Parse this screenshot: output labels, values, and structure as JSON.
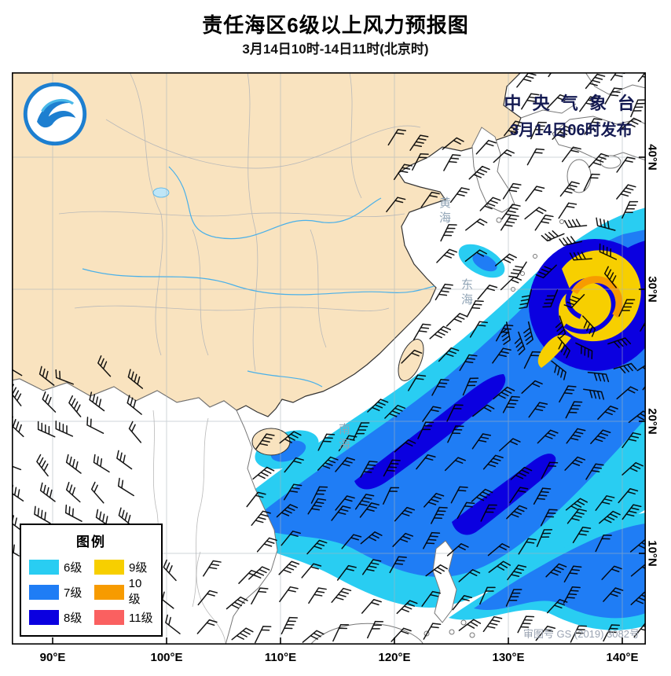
{
  "header": {
    "title": "责任海区6级以上风力预报图",
    "subtitle": "3月14日10时-14日11时(北京时)"
  },
  "issuer": {
    "line1": "中 央 气 象 台",
    "line2": "3月14日06时发布"
  },
  "approval": "审图号 GS (2019) 3082号",
  "seas": {
    "yellow": "黄海",
    "east": "东海",
    "south": "南海"
  },
  "legend": {
    "title": "图例",
    "items": [
      {
        "label": "6级",
        "color": "#29cdf2"
      },
      {
        "label": "7级",
        "color": "#1f7df5"
      },
      {
        "label": "8级",
        "color": "#0b00e0"
      },
      {
        "label": "9级",
        "color": "#f7cf00"
      },
      {
        "label": "10级",
        "color": "#f79b00"
      },
      {
        "label": "11级",
        "color": "#fa6060"
      }
    ]
  },
  "axes": {
    "x": [
      "90°E",
      "100°E",
      "110°E",
      "120°E",
      "130°E",
      "140°E"
    ],
    "y": [
      "40°N",
      "30°N",
      "20°N",
      "10°N"
    ]
  },
  "colors": {
    "land": "#f9e3bf",
    "sea": "#ffffff",
    "logo_blue": "#1d7fd0"
  }
}
